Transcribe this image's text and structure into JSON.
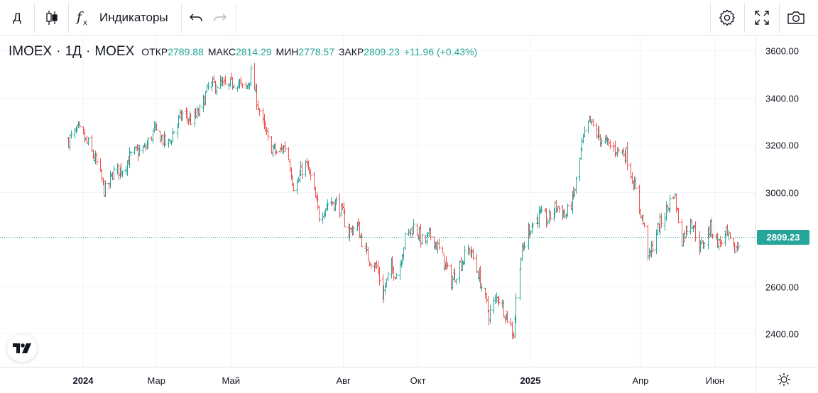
{
  "toolbar": {
    "interval_label": "Д",
    "indicators_label": "Индикаторы",
    "icons": [
      "candles-icon",
      "fx-icon",
      "undo-icon",
      "redo-icon",
      "settings-icon",
      "fullscreen-icon",
      "camera-icon"
    ]
  },
  "legend": {
    "symbol": "IMOEX",
    "interval": "1Д",
    "exchange": "MOEX",
    "open_label": "ОТКР",
    "open": "2789.88",
    "high_label": "МАКС",
    "high": "2814.29",
    "low_label": "МИН",
    "low": "2778.57",
    "close_label": "ЗАКР",
    "close": "2809.23",
    "change": "+11.96 (+0.43%)"
  },
  "price_tag": "2809.23",
  "colors": {
    "up": "#26a69a",
    "down": "#ef5350",
    "grid": "#f0f3fa",
    "text": "#131722"
  },
  "chart_data": {
    "type": "candlestick",
    "x_axis_labels": [
      {
        "label": "2024",
        "bold": true,
        "index": 0
      },
      {
        "label": "Мар",
        "bold": false,
        "index": 2
      },
      {
        "label": "Май",
        "bold": false,
        "index": 4
      },
      {
        "label": "Авг",
        "bold": false,
        "index": 7
      },
      {
        "label": "Окт",
        "bold": false,
        "index": 9
      },
      {
        "label": "2025",
        "bold": true,
        "index": 12
      },
      {
        "label": "Апр",
        "bold": false,
        "index": 15
      },
      {
        "label": "Июн",
        "bold": false,
        "index": 17
      }
    ],
    "y_ticks": [
      "3600.00",
      "3400.00",
      "3200.00",
      "3000.00",
      "2600.00",
      "2400.00"
    ],
    "y_tick_values": [
      3600,
      3400,
      3200,
      3000,
      2600,
      2400
    ],
    "ylim": [
      2340,
      3640
    ],
    "last_price": 2809.23,
    "close_path": [
      [
        "2023-12-20",
        3220
      ],
      [
        "2023-12-28",
        3260
      ],
      [
        "2024-01-05",
        3200
      ],
      [
        "2024-01-12",
        3120
      ],
      [
        "2024-01-18",
        3010
      ],
      [
        "2024-01-20",
        3000
      ],
      [
        "2024-01-25",
        3080
      ],
      [
        "2024-02-02",
        3100
      ],
      [
        "2024-02-10",
        3160
      ],
      [
        "2024-02-20",
        3180
      ],
      [
        "2024-02-28",
        3260
      ],
      [
        "2024-03-05",
        3230
      ],
      [
        "2024-03-10",
        3190
      ],
      [
        "2024-03-15",
        3260
      ],
      [
        "2024-03-22",
        3330
      ],
      [
        "2024-03-30",
        3300
      ],
      [
        "2024-04-05",
        3340
      ],
      [
        "2024-04-12",
        3440
      ],
      [
        "2024-04-20",
        3460
      ],
      [
        "2024-04-28",
        3440
      ],
      [
        "2024-05-05",
        3480
      ],
      [
        "2024-05-12",
        3420
      ],
      [
        "2024-05-17",
        3500
      ],
      [
        "2024-05-20",
        3440
      ],
      [
        "2024-05-25",
        3320
      ],
      [
        "2024-06-01",
        3200
      ],
      [
        "2024-06-08",
        3160
      ],
      [
        "2024-06-15",
        3200
      ],
      [
        "2024-06-22",
        3000
      ],
      [
        "2024-06-30",
        3130
      ],
      [
        "2024-07-05",
        3060
      ],
      [
        "2024-07-12",
        2900
      ],
      [
        "2024-07-20",
        2960
      ],
      [
        "2024-07-28",
        2950
      ],
      [
        "2024-08-05",
        2830
      ],
      [
        "2024-08-12",
        2860
      ],
      [
        "2024-08-20",
        2730
      ],
      [
        "2024-08-28",
        2680
      ],
      [
        "2024-09-02",
        2560
      ],
      [
        "2024-09-08",
        2680
      ],
      [
        "2024-09-14",
        2650
      ],
      [
        "2024-09-20",
        2800
      ],
      [
        "2024-09-28",
        2860
      ],
      [
        "2024-10-05",
        2780
      ],
      [
        "2024-10-12",
        2820
      ],
      [
        "2024-10-20",
        2730
      ],
      [
        "2024-10-28",
        2620
      ],
      [
        "2024-11-05",
        2700
      ],
      [
        "2024-11-12",
        2760
      ],
      [
        "2024-11-20",
        2640
      ],
      [
        "2024-11-28",
        2480
      ],
      [
        "2024-12-05",
        2560
      ],
      [
        "2024-12-12",
        2480
      ],
      [
        "2024-12-18",
        2400
      ],
      [
        "2024-12-22",
        2680
      ],
      [
        "2024-12-30",
        2840
      ],
      [
        "2025-01-08",
        2900
      ],
      [
        "2025-01-15",
        2880
      ],
      [
        "2025-01-22",
        2940
      ],
      [
        "2025-01-30",
        2900
      ],
      [
        "2025-02-05",
        2980
      ],
      [
        "2025-02-12",
        3200
      ],
      [
        "2025-02-18",
        3300
      ],
      [
        "2025-02-25",
        3240
      ],
      [
        "2025-03-05",
        3200
      ],
      [
        "2025-03-12",
        3180
      ],
      [
        "2025-03-20",
        3160
      ],
      [
        "2025-03-28",
        3000
      ],
      [
        "2025-04-03",
        2870
      ],
      [
        "2025-04-08",
        2720
      ],
      [
        "2025-04-14",
        2830
      ],
      [
        "2025-04-22",
        2920
      ],
      [
        "2025-04-28",
        3000
      ],
      [
        "2025-05-05",
        2800
      ],
      [
        "2025-05-12",
        2890
      ],
      [
        "2025-05-20",
        2760
      ],
      [
        "2025-05-28",
        2850
      ],
      [
        "2025-06-04",
        2780
      ],
      [
        "2025-06-10",
        2820
      ],
      [
        "2025-06-16",
        2750
      ],
      [
        "2025-06-22",
        2790
      ],
      [
        "2025-06-28",
        2809
      ]
    ]
  }
}
